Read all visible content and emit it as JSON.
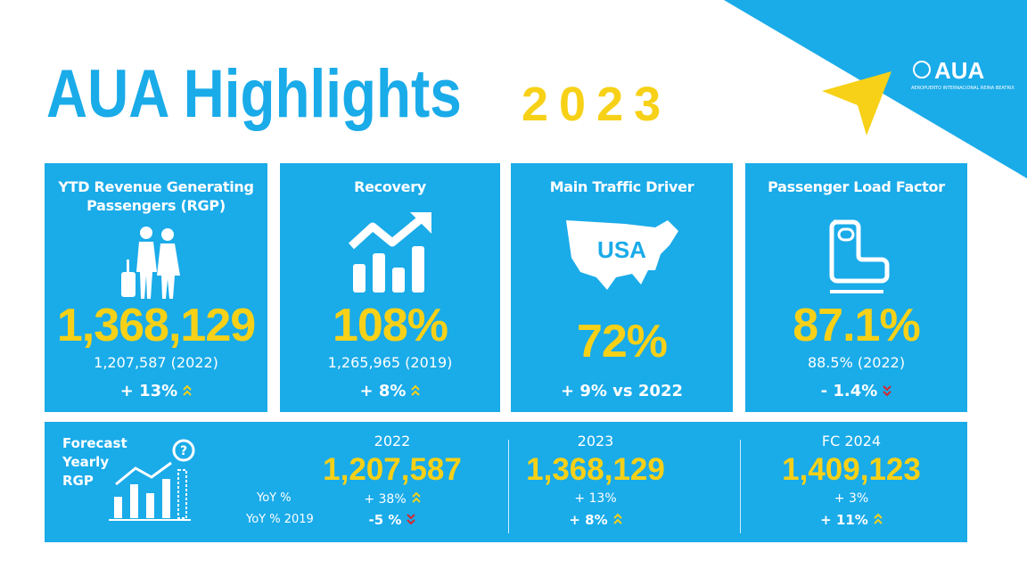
{
  "header": {
    "title": "AUA Highlights",
    "year": "2023",
    "logo": "AUA",
    "logo_subtitle": "AEROPUERTO INTERNACIONAL REINA BEATRIX"
  },
  "cards": [
    {
      "title": "YTD Revenue Generating Passengers (RGP)",
      "value": "1,368,129",
      "compare": "1,207,587 (2022)",
      "change": "+ 13%",
      "direction": "up"
    },
    {
      "title": "Recovery",
      "value": "108%",
      "compare": "1,265,965 (2019)",
      "change": "+ 8%",
      "direction": "up"
    },
    {
      "title": "Main Traffic Driver",
      "map_label": "USA",
      "value": "72%",
      "change": "+ 9% vs 2022"
    },
    {
      "title": "Passenger Load Factor",
      "value": "87.1%",
      "compare": "88.5% (2022)",
      "change": "- 1.4%",
      "direction": "down"
    }
  ],
  "forecast": {
    "title": "Forecast Yearly RGP",
    "row_labels": [
      "YoY %",
      "YoY % 2019"
    ],
    "columns": [
      {
        "year": "2022",
        "value": "1,207,587",
        "yoy": "+ 38%",
        "yoy_direction": "up",
        "yoy_2019": "-5 %",
        "yoy_2019_direction": "down"
      },
      {
        "year": "2023",
        "value": "1,368,129",
        "yoy": "+ 13%",
        "yoy_2019": "+ 8%",
        "yoy_2019_direction": "up"
      },
      {
        "year": "FC 2024",
        "value": "1,409,123",
        "yoy": "+ 3%",
        "yoy_2019": "+ 11%",
        "yoy_2019_direction": "up"
      }
    ]
  }
}
